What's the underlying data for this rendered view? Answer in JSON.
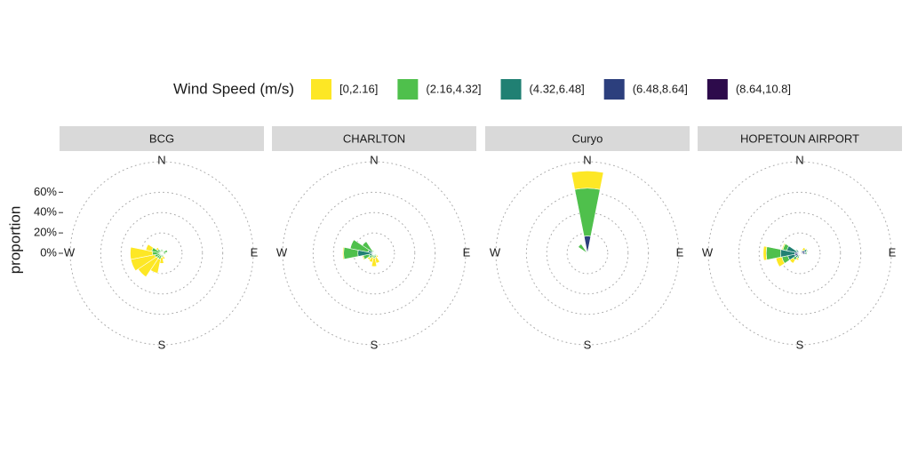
{
  "chart_data": {
    "type": "windrose",
    "legend_title": "Wind Speed (m/s)",
    "y_label": "proportion",
    "ylim": [
      0,
      90
    ],
    "yticks": [
      {
        "value": 0,
        "label": "0%"
      },
      {
        "value": 20,
        "label": "20%"
      },
      {
        "value": 40,
        "label": "40%"
      },
      {
        "value": 60,
        "label": "60%"
      }
    ],
    "grid": true,
    "direction_labels": [
      "N",
      "E",
      "S",
      "W"
    ],
    "series": [
      {
        "name": "[0,2.16]",
        "color": "#fde725"
      },
      {
        "name": "(2.16,4.32]",
        "color": "#4fc04c"
      },
      {
        "name": "(4.32,6.48]",
        "color": "#208073"
      },
      {
        "name": "(6.48,8.64]",
        "color": "#2c3f7d"
      },
      {
        "name": "(8.64,10.8]",
        "color": "#2d0b4b"
      }
    ],
    "facets": [
      {
        "title": "BCG",
        "values": [
          [
            0,
            0,
            0,
            0,
            0,
            0,
            0,
            3,
            6,
            14,
            22,
            24,
            22,
            6,
            2,
            0
          ],
          [
            4,
            3,
            2,
            5,
            4,
            2,
            2,
            3,
            4,
            6,
            5,
            6,
            8,
            9,
            5,
            3
          ],
          [
            0,
            0,
            0,
            1,
            0,
            0,
            0,
            0,
            0,
            0,
            1,
            1,
            1,
            1,
            0,
            0
          ],
          [
            0,
            0,
            0,
            0,
            0,
            0,
            0,
            0,
            0,
            0,
            0,
            0,
            0,
            0,
            0,
            0
          ],
          [
            0,
            0,
            0,
            0,
            0,
            0,
            0,
            0,
            0,
            0,
            0,
            0,
            0,
            0,
            0,
            0
          ]
        ]
      },
      {
        "title": "CHARLTON",
        "values": [
          [
            0,
            0,
            0,
            0,
            0,
            0,
            2,
            6,
            8,
            5,
            2,
            1,
            1,
            0,
            0,
            0
          ],
          [
            1,
            1,
            1,
            2,
            1,
            1,
            2,
            3,
            4,
            3,
            4,
            6,
            14,
            18,
            12,
            3
          ],
          [
            0,
            0,
            0,
            0,
            0,
            0,
            1,
            1,
            1,
            1,
            2,
            4,
            14,
            5,
            2,
            0
          ],
          [
            0,
            0,
            0,
            0,
            0,
            0,
            0,
            0,
            0,
            0,
            0,
            1,
            2,
            1,
            0,
            0
          ],
          [
            0,
            0,
            0,
            0,
            0,
            0,
            0,
            0,
            0,
            0,
            0,
            0,
            0,
            0,
            0,
            0
          ]
        ]
      },
      {
        "title": "Curyo",
        "values": [
          [
            17,
            0,
            0,
            0,
            0,
            0,
            0,
            0,
            0,
            0,
            0,
            0,
            0,
            0,
            0,
            0
          ],
          [
            47,
            0,
            0,
            0,
            0,
            0,
            0,
            0,
            0,
            0,
            0,
            0,
            0,
            0,
            11,
            2
          ],
          [
            0,
            0,
            0,
            0,
            0,
            0,
            0,
            0,
            0,
            0,
            0,
            0,
            0,
            0,
            0,
            0
          ],
          [
            17,
            1,
            0,
            0,
            0,
            0,
            0,
            0,
            0,
            0,
            0,
            0,
            0,
            0,
            0,
            0
          ],
          [
            0,
            0,
            0,
            0,
            0,
            0,
            0,
            0,
            0,
            0,
            0,
            0,
            0,
            0,
            0,
            0
          ]
        ]
      },
      {
        "title": "HOPETOUN AIRPORT",
        "values": [
          [
            0,
            1,
            3,
            0,
            0,
            0,
            0,
            0,
            1,
            2,
            4,
            6,
            3,
            1,
            0,
            0
          ],
          [
            0,
            0,
            1,
            1,
            1,
            0,
            0,
            0,
            1,
            2,
            3,
            6,
            14,
            4,
            1,
            0
          ],
          [
            0,
            0,
            1,
            2,
            1,
            0,
            0,
            1,
            1,
            2,
            3,
            7,
            14,
            10,
            3,
            0
          ],
          [
            0,
            0,
            1,
            3,
            2,
            1,
            0,
            0,
            0,
            1,
            2,
            4,
            4,
            3,
            1,
            0
          ],
          [
            0,
            0,
            1,
            2,
            3,
            1,
            0,
            0,
            0,
            0,
            0,
            1,
            1,
            0,
            0,
            0
          ]
        ]
      }
    ]
  }
}
